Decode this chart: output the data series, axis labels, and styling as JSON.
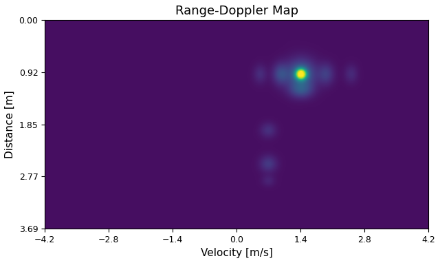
{
  "title": "Range-Doppler Map",
  "xlabel": "Velocity [m/s]",
  "ylabel": "Distance [m]",
  "vel_min": -4.2,
  "vel_max": 4.2,
  "dist_min": 0.0,
  "dist_max": 3.69,
  "xticks": [
    -4.2,
    -2.8,
    -1.4,
    0.0,
    1.4,
    2.8,
    4.2
  ],
  "yticks": [
    0.0,
    0.92,
    1.85,
    2.77,
    3.69
  ],
  "colormap": "viridis",
  "main_peak_vel": 1.42,
  "main_peak_dist": 0.95,
  "sec_peak1_vel": 0.7,
  "sec_peak1_dist": 1.95,
  "sec_peak2_vel": 0.7,
  "sec_peak2_dist": 2.55,
  "sec_peak3_vel": 0.7,
  "sec_peak3_dist": 2.85,
  "background_level": 0.03,
  "noise_amplitude": 0.015
}
